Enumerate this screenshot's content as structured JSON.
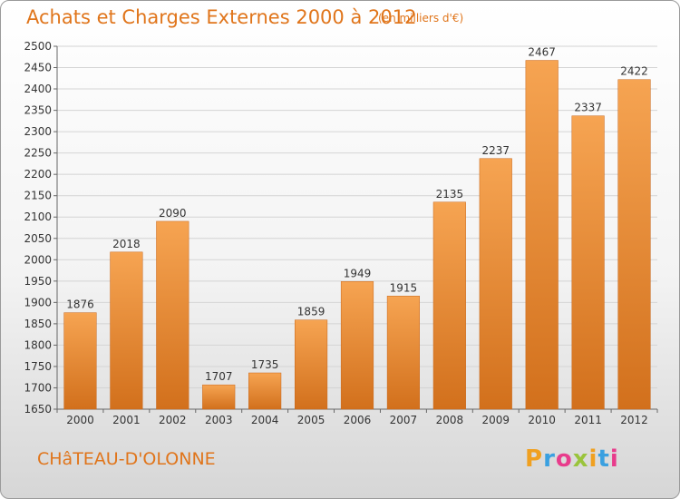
{
  "header": {
    "title": "Achats et Charges Externes 2000 à 2012",
    "subtitle": "(en milliers d'€)"
  },
  "footer": {
    "place": "CHâTEAU-D'OLONNE",
    "brand": "Proxiti",
    "brand_colors": [
      "#f0a020",
      "#3aa0e0",
      "#e83c8c",
      "#9ac43c",
      "#f0a020",
      "#3aa0e0",
      "#e83c8c"
    ]
  },
  "chart_data": {
    "type": "bar",
    "title": "Achats et Charges Externes 2000 à 2012",
    "categories": [
      "2000",
      "2001",
      "2002",
      "2003",
      "2004",
      "2005",
      "2006",
      "2007",
      "2008",
      "2009",
      "2010",
      "2011",
      "2012"
    ],
    "values": [
      1876,
      2018,
      2090,
      1707,
      1735,
      1859,
      1949,
      1915,
      2135,
      2237,
      2467,
      2337,
      2422
    ],
    "ylim": [
      1650,
      2500
    ],
    "yticks": [
      1650,
      1700,
      1750,
      1800,
      1850,
      1900,
      1950,
      2000,
      2050,
      2100,
      2150,
      2200,
      2250,
      2300,
      2350,
      2400,
      2450,
      2500
    ],
    "grid": true,
    "bar_color": "#e9842b"
  }
}
